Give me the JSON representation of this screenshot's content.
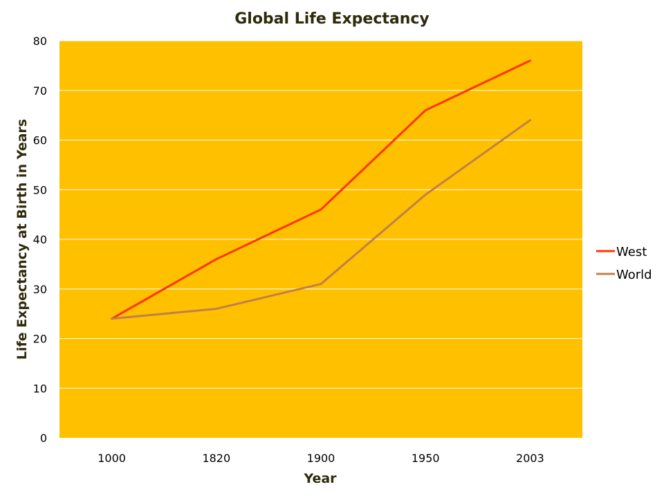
{
  "chart_data": {
    "type": "line",
    "title": "Global Life Expectancy",
    "xlabel": "Year",
    "ylabel": "Life Expectancy at Birth in Years",
    "categories": [
      "1000",
      "1820",
      "1900",
      "1950",
      "2003"
    ],
    "ylim": [
      0,
      80
    ],
    "yticks": [
      0,
      10,
      20,
      30,
      40,
      50,
      60,
      70,
      80
    ],
    "grid": true,
    "legend_position": "right",
    "series": [
      {
        "name": "West",
        "values": [
          24,
          36,
          46,
          66,
          76
        ],
        "color": "#FF3300"
      },
      {
        "name": "World",
        "values": [
          24,
          26,
          31,
          49,
          64
        ],
        "color": "#C0804A"
      }
    ],
    "colors": {
      "plot_background": "#FFC000",
      "gridline": "#FFFFFF",
      "title": "#2E2A0C",
      "text": "#000000"
    }
  }
}
